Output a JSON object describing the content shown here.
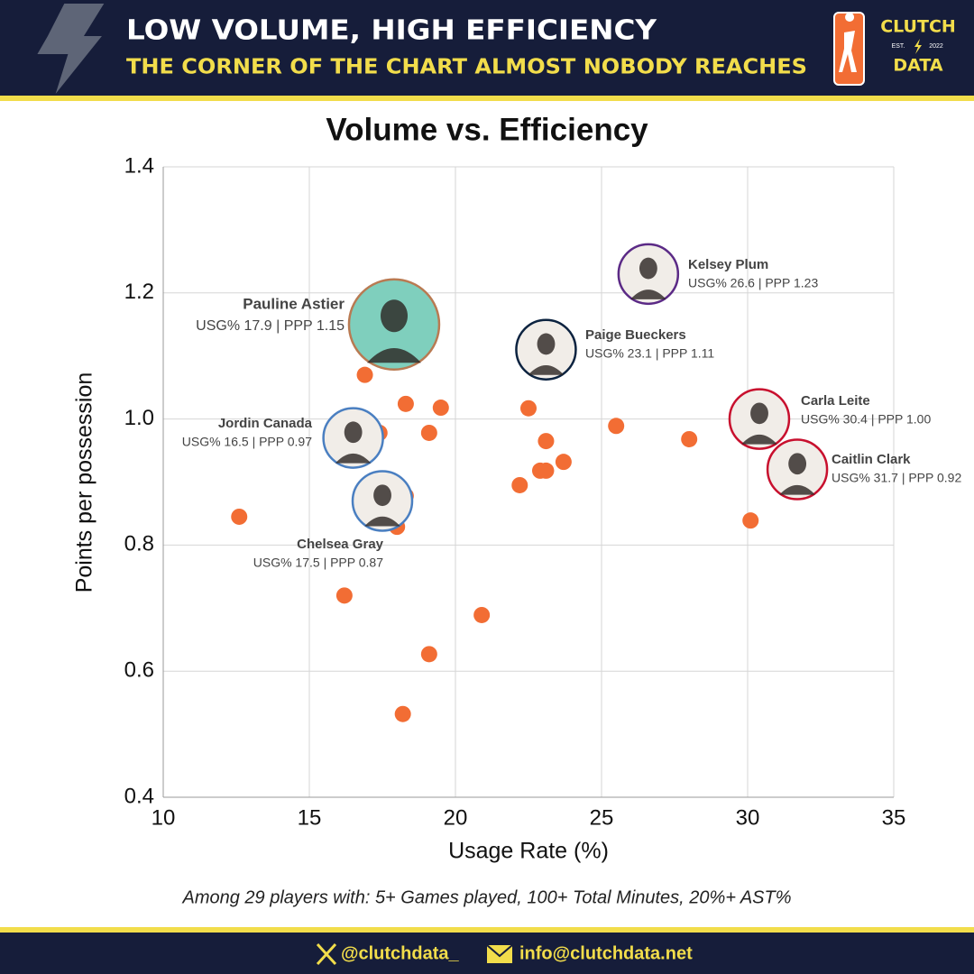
{
  "header": {
    "title": "LOW VOLUME, HIGH EFFICIENCY",
    "subtitle": "THE CORNER OF THE CHART ALMOST NOBODY REACHES",
    "logo": {
      "top": "CLUTCH",
      "est": "EST.",
      "year": "2022",
      "bottom": "DATA"
    }
  },
  "chart_data": {
    "type": "scatter",
    "title": "Volume vs. Efficiency",
    "x_label": "Usage Rate (%)",
    "y_label": "Points per possession",
    "note": "Among 29 players with: 5+ Games played, 100+ Total Minutes, 20%+ AST%",
    "xlim": [
      10,
      35
    ],
    "xticks": [
      10,
      15,
      20,
      25,
      30,
      35
    ],
    "ylim": [
      0.4,
      1.4
    ],
    "yticks": [
      0.4,
      0.6,
      0.8,
      {
        "value": 1,
        "label": "1.0"
      },
      1.2,
      1.4
    ],
    "grid": true,
    "series": [
      {
        "color": "#f26d34",
        "x": [
          12.6,
          16.9,
          17.4,
          18.3,
          19.5,
          19.1,
          18.3,
          18.0,
          16.2,
          19.1,
          18.2,
          20.9,
          22.5,
          23.1,
          23.7,
          22.2,
          22.9,
          23.1,
          25.5,
          28.0,
          30.1
        ],
        "values": [
          0.845,
          1.07,
          0.978,
          1.024,
          1.018,
          0.978,
          0.878,
          0.829,
          0.72,
          0.627,
          0.532,
          0.689,
          1.017,
          0.965,
          0.932,
          0.895,
          0.918,
          0.918,
          0.989,
          0.968,
          0.839
        ]
      }
    ],
    "highlights": [
      {
        "name": "Pauline Astier",
        "x": 17.9,
        "y": 1.15,
        "label": "USG% 17.9 | PPP 1.15",
        "color": "#b97a52"
      },
      {
        "name": "Kelsey Plum",
        "x": 26.6,
        "y": 1.23,
        "label": "USG% 26.6 | PPP 1.23",
        "color": "#5b2a86"
      },
      {
        "name": "Paige Bueckers",
        "x": 23.1,
        "y": 1.11,
        "label": "USG% 23.1 | PPP 1.11",
        "color": "#0c2340"
      },
      {
        "name": "Carla Leite",
        "x": 30.4,
        "y": 1.0,
        "label": "USG% 30.4 | PPP 1.00",
        "color": "#c8102e"
      },
      {
        "name": "Caitlin Clark",
        "x": 31.7,
        "y": 0.92,
        "label": "USG% 31.7 | PPP 0.92",
        "color": "#c8102e"
      },
      {
        "name": "Jordin Canada",
        "x": 16.5,
        "y": 0.97,
        "label": "USG% 16.5 | PPP 0.97",
        "color": "#4a7fc1"
      },
      {
        "name": "Chelsea Gray",
        "x": 17.5,
        "y": 0.87,
        "label": "USG% 17.5 | PPP 0.87",
        "color": "#4a7fc1"
      }
    ]
  },
  "footer": {
    "twitter": "@clutchdata_",
    "email": "info@clutchdata.net"
  }
}
